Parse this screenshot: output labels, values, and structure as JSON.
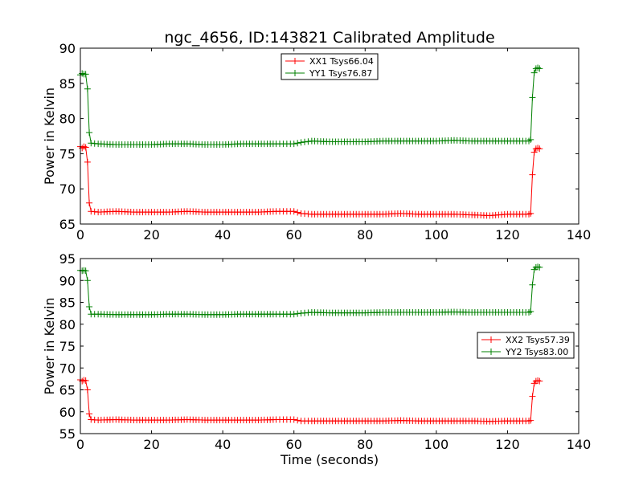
{
  "figure": {
    "title": "ngc_4656, ID:143821 Calibrated Amplitude",
    "colors": {
      "red": "#ff0000",
      "green": "#008000"
    }
  },
  "chart_data": [
    {
      "type": "line",
      "title": "ngc_4656, ID:143821 Calibrated Amplitude",
      "xlabel": "",
      "ylabel": "Power in Kelvin",
      "xlim": [
        0,
        140
      ],
      "ylim": [
        65,
        90
      ],
      "xticks": [
        "0",
        "20",
        "40",
        "60",
        "80",
        "100",
        "120",
        "140"
      ],
      "yticks": [
        "65",
        "70",
        "75",
        "80",
        "85",
        "90"
      ],
      "grid": false,
      "legend_position": "top-center",
      "marker": "+",
      "series": [
        {
          "name": "XX1 Tsys66.04",
          "color": "#ff0000",
          "x": [
            0,
            0.5,
            1,
            1.5,
            2,
            2.5,
            3,
            5,
            10,
            15,
            20,
            25,
            30,
            35,
            40,
            45,
            50,
            55,
            58,
            60,
            62,
            65,
            70,
            75,
            80,
            85,
            90,
            95,
            100,
            105,
            110,
            115,
            120,
            126,
            126.5,
            127,
            127.5,
            128,
            128.5,
            129
          ],
          "values": [
            76,
            75.8,
            76,
            75.9,
            73.8,
            68,
            66.8,
            66.7,
            66.8,
            66.7,
            66.7,
            66.7,
            66.8,
            66.7,
            66.7,
            66.7,
            66.7,
            66.8,
            66.8,
            66.8,
            66.5,
            66.4,
            66.4,
            66.4,
            66.4,
            66.4,
            66.5,
            66.4,
            66.4,
            66.4,
            66.3,
            66.2,
            66.4,
            66.4,
            66.5,
            72,
            75.2,
            75.7,
            75.8,
            75.7
          ]
        },
        {
          "name": "YY1 Tsys76.87",
          "color": "#008000",
          "x": [
            0,
            0.5,
            1,
            1.5,
            2,
            2.5,
            3,
            5,
            10,
            15,
            20,
            25,
            30,
            35,
            40,
            45,
            50,
            55,
            58,
            60,
            62,
            65,
            70,
            75,
            80,
            85,
            90,
            95,
            100,
            105,
            110,
            115,
            120,
            126,
            126.5,
            127,
            127.5,
            128,
            128.5,
            129
          ],
          "values": [
            86.2,
            86.4,
            86.3,
            86.3,
            84.2,
            78,
            76.5,
            76.4,
            76.3,
            76.3,
            76.3,
            76.4,
            76.4,
            76.3,
            76.3,
            76.4,
            76.4,
            76.4,
            76.4,
            76.4,
            76.6,
            76.8,
            76.7,
            76.7,
            76.7,
            76.8,
            76.8,
            76.8,
            76.8,
            76.9,
            76.8,
            76.8,
            76.8,
            76.8,
            77.0,
            83,
            86.5,
            87.1,
            87.2,
            87.1
          ]
        }
      ]
    },
    {
      "type": "line",
      "title": "",
      "xlabel": "Time (seconds)",
      "ylabel": "Power in Kelvin",
      "xlim": [
        0,
        140
      ],
      "ylim": [
        55,
        95
      ],
      "xticks": [
        "0",
        "20",
        "40",
        "60",
        "80",
        "100",
        "120",
        "140"
      ],
      "yticks": [
        "55",
        "60",
        "65",
        "70",
        "75",
        "80",
        "85",
        "90",
        "95"
      ],
      "grid": false,
      "legend_position": "center-right",
      "marker": "+",
      "series": [
        {
          "name": "XX2 Tsys57.39",
          "color": "#ff0000",
          "x": [
            0,
            0.5,
            1,
            1.5,
            2,
            2.5,
            3,
            5,
            10,
            15,
            20,
            25,
            30,
            35,
            40,
            45,
            50,
            55,
            58,
            60,
            62,
            65,
            70,
            75,
            80,
            85,
            90,
            95,
            100,
            105,
            110,
            115,
            120,
            126,
            126.5,
            127,
            127.5,
            128,
            128.5,
            129
          ],
          "values": [
            67.3,
            67.0,
            67.2,
            67.1,
            65.0,
            59.5,
            58.2,
            58.1,
            58.2,
            58.1,
            58.1,
            58.1,
            58.2,
            58.1,
            58.1,
            58.1,
            58.1,
            58.2,
            58.2,
            58.2,
            57.9,
            57.9,
            57.9,
            57.9,
            57.9,
            57.9,
            58.0,
            57.9,
            57.9,
            57.9,
            57.9,
            57.8,
            57.9,
            57.9,
            58.0,
            63.5,
            66.5,
            67.0,
            67.1,
            67.0
          ]
        },
        {
          "name": "YY2 Tsys83.00",
          "color": "#008000",
          "x": [
            0,
            0.5,
            1,
            1.5,
            2,
            2.5,
            3,
            5,
            10,
            15,
            20,
            25,
            30,
            35,
            40,
            45,
            50,
            55,
            58,
            60,
            62,
            65,
            70,
            75,
            80,
            85,
            90,
            95,
            100,
            105,
            110,
            115,
            120,
            126,
            126.5,
            127,
            127.5,
            128,
            128.5,
            129
          ],
          "values": [
            92.3,
            92.2,
            92.3,
            92.2,
            90.0,
            84.0,
            82.3,
            82.3,
            82.2,
            82.2,
            82.2,
            82.3,
            82.3,
            82.2,
            82.2,
            82.3,
            82.3,
            82.3,
            82.3,
            82.3,
            82.5,
            82.7,
            82.6,
            82.6,
            82.6,
            82.7,
            82.7,
            82.7,
            82.7,
            82.8,
            82.7,
            82.7,
            82.7,
            82.7,
            82.9,
            89.0,
            92.5,
            93.0,
            93.1,
            93.0
          ]
        }
      ]
    }
  ]
}
